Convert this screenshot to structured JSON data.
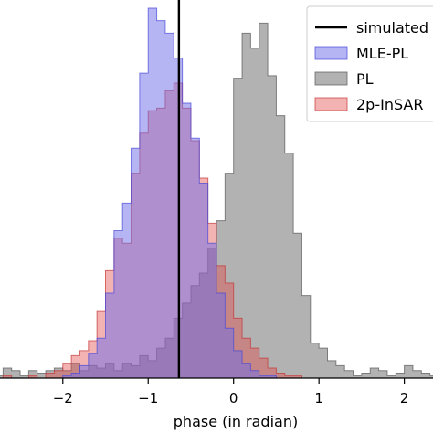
{
  "chart_data": {
    "type": "histogram",
    "xlabel": "phase (in radian)",
    "xlim": [
      -2.8,
      2.4
    ],
    "ylim": [
      0,
      1.52
    ],
    "grid": false,
    "legend_position": "top-right",
    "xticks": [
      {
        "value": -2,
        "label": "−2"
      },
      {
        "value": -1,
        "label": "−1"
      },
      {
        "value": 0,
        "label": "0"
      },
      {
        "value": 1,
        "label": "1"
      },
      {
        "value": 2,
        "label": "2"
      }
    ],
    "bin_start": -2.8,
    "bin_width": 0.1,
    "vline": {
      "x": -0.64,
      "color": "#000000",
      "label": "simulated"
    },
    "series": [
      {
        "name": "PL",
        "color": "#7f7f7f",
        "alpha": 0.6,
        "edge": "#555555",
        "values": [
          0.01,
          0.04,
          0.03,
          0.01,
          0.03,
          0.02,
          0.03,
          0.04,
          0.03,
          0.06,
          0.03,
          0.05,
          0.04,
          0.06,
          0.03,
          0.06,
          0.05,
          0.09,
          0.07,
          0.12,
          0.16,
          0.24,
          0.3,
          0.37,
          0.42,
          0.52,
          0.63,
          0.82,
          1.2,
          1.38,
          1.32,
          1.42,
          1.21,
          1.05,
          0.9,
          0.58,
          0.33,
          0.14,
          0.12,
          0.07,
          0.05,
          0.03,
          0.01,
          0.02,
          0.04,
          0.03,
          0.01,
          0.02,
          0.05,
          0.03,
          0.02,
          0.01
        ]
      },
      {
        "name": "2p-InSAR",
        "color": "#e24a4a",
        "alpha": 0.42,
        "edge": "#c43535",
        "values": [
          0.0,
          0.01,
          0.0,
          0.0,
          0.01,
          0.0,
          0.02,
          0.03,
          0.06,
          0.09,
          0.11,
          0.15,
          0.27,
          0.43,
          0.56,
          0.54,
          0.82,
          0.98,
          1.07,
          1.08,
          1.15,
          1.18,
          1.08,
          0.95,
          0.8,
          0.62,
          0.45,
          0.38,
          0.24,
          0.16,
          0.12,
          0.08,
          0.04,
          0.02,
          0.01,
          0.01,
          0.0,
          0.0,
          0.0,
          0.0,
          0.0,
          0.0,
          0.0,
          0.0,
          0.0,
          0.0,
          0.0,
          0.0,
          0.0,
          0.0,
          0.0,
          0.0
        ]
      },
      {
        "name": "MLE-PL",
        "color": "#6b6bea",
        "alpha": 0.5,
        "edge": "#4747d8",
        "values": [
          0.0,
          0.0,
          0.0,
          0.0,
          0.0,
          0.0,
          0.0,
          0.0,
          0.01,
          0.02,
          0.05,
          0.1,
          0.16,
          0.34,
          0.59,
          0.7,
          0.92,
          1.22,
          1.48,
          1.43,
          1.38,
          1.28,
          1.1,
          0.96,
          0.78,
          0.54,
          0.34,
          0.2,
          0.11,
          0.06,
          0.03,
          0.01,
          0.01,
          0.0,
          0.0,
          0.0,
          0.0,
          0.0,
          0.0,
          0.0,
          0.0,
          0.0,
          0.0,
          0.0,
          0.0,
          0.0,
          0.0,
          0.0,
          0.0,
          0.0,
          0.0,
          0.0
        ]
      }
    ],
    "legend": [
      "simulated",
      "MLE-PL",
      "PL",
      "2p-InSAR"
    ]
  }
}
